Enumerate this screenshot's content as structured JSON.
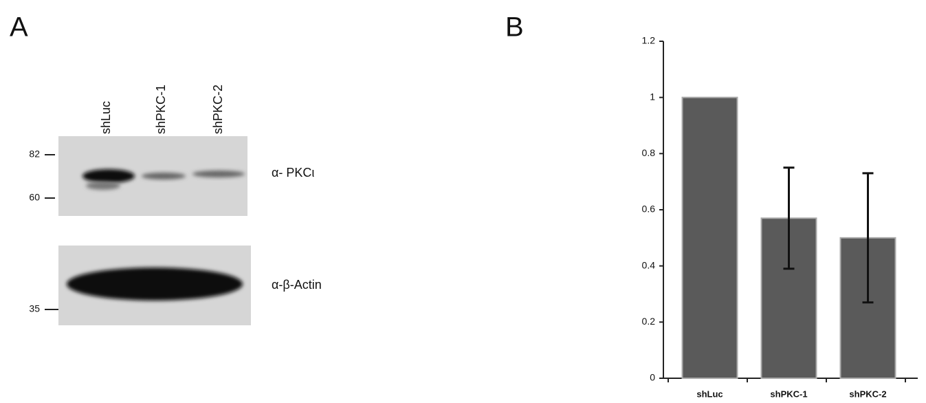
{
  "panel_a": {
    "letter": "A",
    "lanes": [
      "shLuc",
      "shPKC-1",
      "shPKC-2"
    ],
    "markers": [
      82,
      60,
      35
    ],
    "blot_labels": [
      "α- PKCι",
      "α-β-Actin"
    ]
  },
  "chart_data": {
    "type": "bar",
    "letter": "B",
    "categories": [
      "shLuc",
      "shPKC-1",
      "shPKC-2"
    ],
    "values": [
      1,
      0.57,
      0.5
    ],
    "errors": [
      0,
      0.18,
      0.23
    ],
    "color": "#5a5a5a",
    "ylim": [
      0,
      1.2
    ],
    "yticks": [
      0,
      0.2,
      0.4,
      0.6,
      0.8,
      1,
      1.2
    ]
  }
}
